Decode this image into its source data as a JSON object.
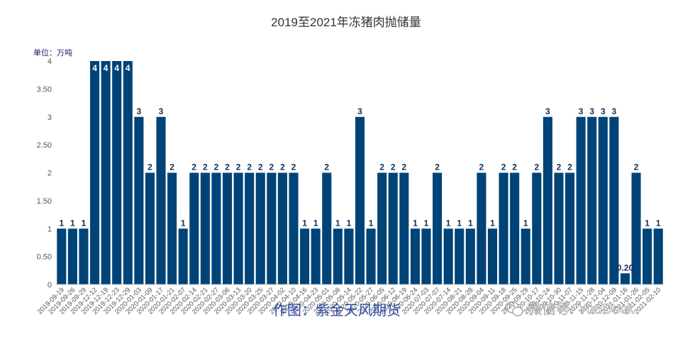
{
  "chart_data": {
    "type": "bar",
    "title": "2019至2021年冻猪肉抛储量",
    "unit_label": "单位：万吨",
    "ylim": [
      0,
      4
    ],
    "y_ticks": [
      "0",
      "0.50",
      "1",
      "1.50",
      "2",
      "2.50",
      "3",
      "3.50",
      "4"
    ],
    "bar_color": "#004477",
    "label_color": "#0f2f55",
    "categories": [
      "2019-09-19",
      "2019-09-26",
      "2019-09-29",
      "2019-12-12",
      "2019-12-19",
      "2019-12-23",
      "2019-12-29",
      "2020-01-03",
      "2020-01-09",
      "2020-01-17",
      "2020-01-21",
      "2020-02-07",
      "2020-02-14",
      "2020-02-21",
      "2020-02-27",
      "2020-03-06",
      "2020-03-13",
      "2020-03-20",
      "2020-03-25",
      "2020-03-27",
      "2020-04-02",
      "2020-04-10",
      "2020-04-16",
      "2020-04-23",
      "2020-05-01",
      "2020-05-08",
      "2020-05-14",
      "2020-05-22",
      "2020-05-27",
      "2020-06-05",
      "2020-06-12",
      "2020-06-19",
      "2020-06-24",
      "2020-07-03",
      "2020-07-07",
      "2020-07-14",
      "2020-08-21",
      "2020-08-28",
      "2020-09-04",
      "2020-09-11",
      "2020-09-18",
      "2020-09-25",
      "2020-09-29",
      "2020-10-17",
      "2020-10-24",
      "2020-10-30",
      "2020-11-07",
      "2020-11-15",
      "2020-11-28",
      "2020-12-04",
      "2020-12-09",
      "2021-01-16",
      "2021-01-26",
      "2021-02-05",
      "2021-02-10"
    ],
    "values": [
      1,
      1,
      1,
      4,
      4,
      4,
      4,
      3,
      2,
      3,
      2,
      1,
      2,
      2,
      2,
      2,
      2,
      2,
      2,
      2,
      2,
      2,
      1,
      1,
      2,
      1,
      1,
      3,
      1,
      2,
      2,
      2,
      1,
      1,
      2,
      1,
      1,
      1,
      2,
      1,
      2,
      2,
      1,
      2,
      3,
      2,
      2,
      3,
      3,
      3,
      3,
      0.2,
      2,
      1,
      1
    ],
    "value_labels": [
      "1",
      "1",
      "1",
      "4",
      "4",
      "4",
      "4",
      "3",
      "2",
      "3",
      "2",
      "1",
      "2",
      "2",
      "2",
      "2",
      "2",
      "2",
      "2",
      "2",
      "2",
      "2",
      "1",
      "1",
      "2",
      "1",
      "1",
      "3",
      "1",
      "2",
      "2",
      "2",
      "1",
      "1",
      "2",
      "1",
      "1",
      "1",
      "2",
      "1",
      "2",
      "2",
      "1",
      "2",
      "3",
      "2",
      "2",
      "3",
      "3",
      "3",
      "3",
      "0.20",
      "2",
      "1",
      "1"
    ]
  },
  "credit": "作图：紫金天风期货",
  "watermark": "微信号: YouDock"
}
